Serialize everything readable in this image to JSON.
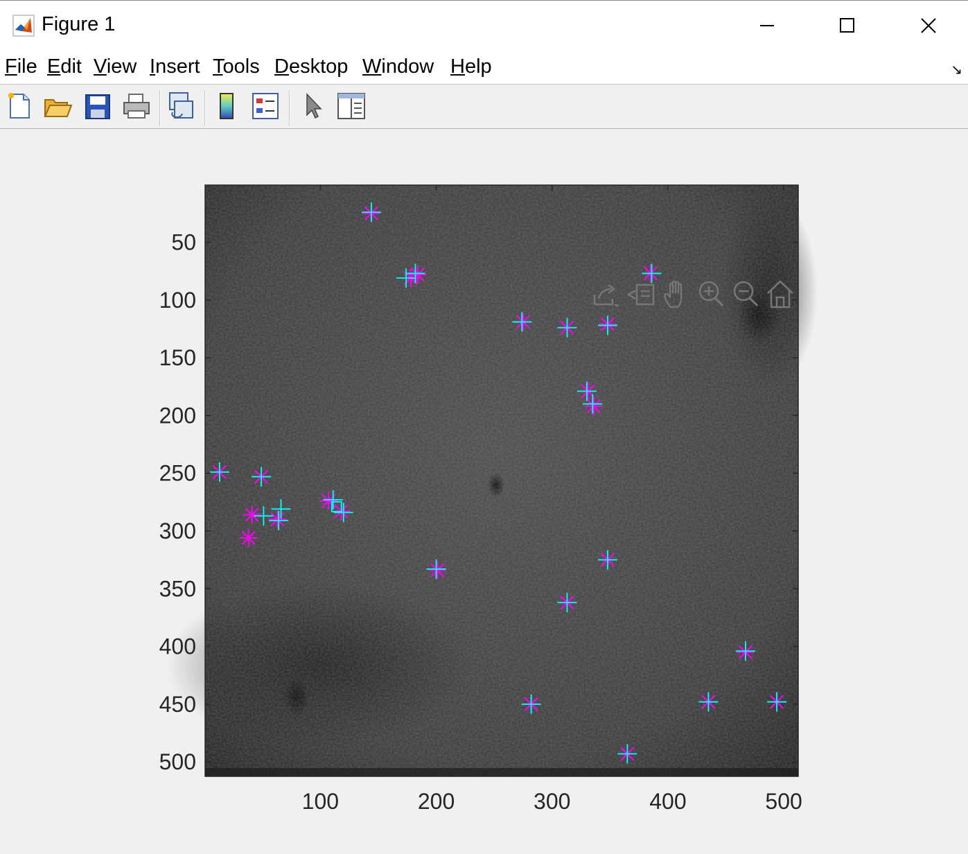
{
  "window": {
    "title": "Figure 1",
    "icon": "matlab-icon",
    "controls": [
      "minimize-icon",
      "maximize-icon",
      "close-icon"
    ]
  },
  "menubar": {
    "items": [
      {
        "label": "File",
        "mnemonic": "F",
        "rest": "ile"
      },
      {
        "label": "Edit",
        "mnemonic": "E",
        "rest": "dit"
      },
      {
        "label": "View",
        "mnemonic": "V",
        "rest": "iew"
      },
      {
        "label": "Insert",
        "mnemonic": "I",
        "rest": "nsert"
      },
      {
        "label": "Tools",
        "mnemonic": "T",
        "rest": "ools"
      },
      {
        "label": "Desktop",
        "mnemonic": "D",
        "rest": "esktop"
      },
      {
        "label": "Window",
        "mnemonic": "W",
        "rest": "indow"
      },
      {
        "label": "Help",
        "mnemonic": "H",
        "rest": "elp"
      }
    ]
  },
  "toolbar": {
    "buttons": [
      "new-figure-icon",
      "open-file-icon",
      "save-icon",
      "print-icon",
      "link-plot-icon",
      "insert-colorbar-icon",
      "insert-legend-icon",
      "edit-plot-pointer-icon",
      "property-inspector-icon"
    ]
  },
  "axes_toolbar": {
    "buttons": [
      "export-icon",
      "brush-data-icon",
      "pan-hand-icon",
      "zoom-in-icon",
      "zoom-out-icon",
      "home-restore-icon"
    ]
  },
  "colors": {
    "magenta_marker": "#ff00ff",
    "cyan_marker": "#00ffff",
    "image_base": "#3b3b3b"
  },
  "chart_data": {
    "type": "scatter",
    "background": "grayscale microscopy image",
    "xlim": [
      0.5,
      512.5
    ],
    "ylim": [
      0.5,
      512.5
    ],
    "y_reversed": true,
    "xticks": [
      100,
      200,
      300,
      400,
      500
    ],
    "yticks": [
      50,
      100,
      150,
      200,
      250,
      300,
      350,
      400,
      450,
      500
    ],
    "xlabel": "",
    "ylabel": "",
    "title": "",
    "series": [
      {
        "color": "#ff00ff",
        "marker": "*",
        "x": [
          144,
          178,
          184,
          385,
          275,
          313,
          348,
          331,
          336,
          13,
          49,
          41,
          38,
          63,
          107,
          118,
          201,
          348,
          313,
          467,
          282,
          435,
          494,
          365
        ],
        "y": [
          25,
          81,
          78,
          77,
          119,
          124,
          121,
          179,
          192,
          249,
          253,
          286,
          306,
          290,
          274,
          283,
          334,
          325,
          362,
          405,
          450,
          448,
          448,
          493
        ]
      },
      {
        "color": "#00ffff",
        "marker": "+",
        "x": [
          144,
          174,
          182,
          386,
          274,
          313,
          348,
          330,
          335,
          13,
          49,
          51,
          64,
          66,
          111,
          120,
          200,
          348,
          313,
          467,
          282,
          435,
          494,
          365
        ],
        "y": [
          24,
          81,
          77,
          77,
          119,
          124,
          122,
          179,
          190,
          249,
          253,
          287,
          291,
          281,
          273,
          284,
          333,
          325,
          362,
          404,
          450,
          448,
          448,
          493
        ]
      },
      {
        "color": "#00ffff",
        "marker": "square",
        "x": [
          114
        ],
        "y": [
          279
        ]
      }
    ]
  }
}
